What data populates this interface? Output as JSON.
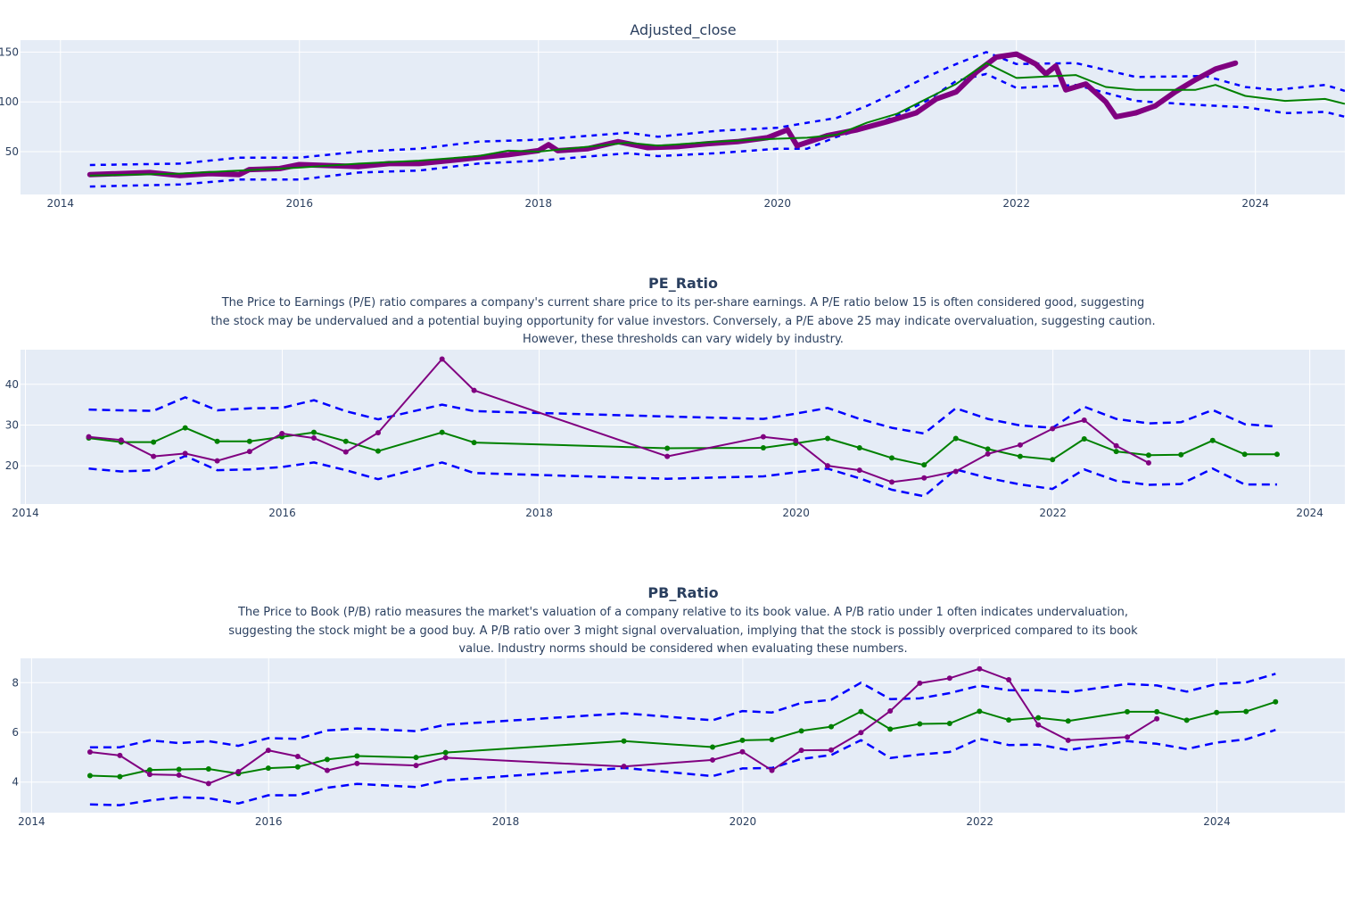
{
  "colors": {
    "background": "#E5ECF6",
    "grid": "#ffffff",
    "price": "#800080",
    "mean": "#008000",
    "band": "#0000ff",
    "text": "#2a3f5f"
  },
  "chart_data": [
    {
      "type": "line",
      "title": "Adjusted_close",
      "xlim": [
        "2013-09",
        "2024-10"
      ],
      "ylim": [
        7,
        162
      ],
      "xticks": [
        "2014",
        "2016",
        "2018",
        "2020",
        "2022",
        "2024"
      ],
      "yticks": [
        50,
        100,
        150
      ],
      "grid": true,
      "series": [
        {
          "role": "upper-band",
          "style": "dash",
          "x": [
            "2014-04",
            "2015-01",
            "2015-07",
            "2016-01",
            "2016-07",
            "2017-01",
            "2017-07",
            "2018-01",
            "2018-10",
            "2019-01",
            "2019-07",
            "2020-01",
            "2020-07",
            "2020-10",
            "2021-01",
            "2021-04",
            "2021-07",
            "2021-10",
            "2022-01",
            "2022-07",
            "2023-01",
            "2023-08",
            "2023-12",
            "2024-03",
            "2024-08",
            "2024-10"
          ],
          "y": [
            36.6,
            38,
            44,
            44,
            50,
            53,
            60,
            62,
            69,
            65,
            71,
            74,
            84,
            96,
            110,
            125,
            138,
            150,
            138,
            139,
            125,
            126,
            115,
            112,
            117,
            111
          ]
        },
        {
          "role": "lower-band",
          "style": "dash",
          "x": [
            "2014-04",
            "2015-01",
            "2015-07",
            "2016-01",
            "2016-07",
            "2017-01",
            "2017-07",
            "2018-01",
            "2018-10",
            "2019-01",
            "2019-07",
            "2020-01",
            "2020-04",
            "2020-07",
            "2020-10",
            "2021-01",
            "2021-04",
            "2021-07",
            "2021-10",
            "2022-01",
            "2022-07",
            "2023-01",
            "2023-07",
            "2023-12",
            "2024-04",
            "2024-08",
            "2024-10"
          ],
          "y": [
            15,
            17,
            22,
            22,
            29,
            31,
            38,
            41,
            48.5,
            45.5,
            48.5,
            53,
            53,
            65,
            74,
            86,
            101,
            121,
            128,
            114,
            117,
            101,
            97,
            94.6,
            88.7,
            90,
            85
          ]
        },
        {
          "role": "price",
          "style": "thick",
          "x": [
            "2014-04",
            "2014-07",
            "2014-10",
            "2015-01",
            "2015-04",
            "2015-07",
            "2015-08",
            "2015-11",
            "2016-01",
            "2016-04",
            "2016-07",
            "2016-10",
            "2017-01",
            "2017-04",
            "2017-07",
            "2017-10",
            "2018-01",
            "2018-02",
            "2018-03",
            "2018-06",
            "2018-09",
            "2018-12",
            "2019-03",
            "2019-06",
            "2019-09",
            "2019-12",
            "2020-02",
            "2020-03",
            "2020-06",
            "2020-09",
            "2020-12",
            "2021-03",
            "2021-05",
            "2021-07",
            "2021-09",
            "2021-11",
            "2022-01",
            "2022-03",
            "2022-04",
            "2022-05",
            "2022-06",
            "2022-08",
            "2022-10",
            "2022-11",
            "2023-01",
            "2023-03",
            "2023-05",
            "2023-07",
            "2023-09",
            "2023-11"
          ],
          "y": [
            27,
            28,
            29,
            26,
            28,
            27,
            32,
            33,
            37,
            36,
            35,
            38,
            38,
            41,
            44,
            47,
            51,
            57,
            51,
            53,
            60,
            54,
            55,
            58,
            60,
            64,
            72,
            56,
            66,
            72,
            80,
            89,
            103,
            110,
            130,
            145,
            148,
            138,
            128,
            136,
            112,
            118,
            100,
            85,
            89,
            96,
            110,
            122,
            133,
            139
          ]
        },
        {
          "role": "mean",
          "style": "solid",
          "x": [
            "2014-04",
            "2015-01",
            "2015-07",
            "2016-01",
            "2016-07",
            "2017-01",
            "2017-07",
            "2017-10",
            "2018-01",
            "2018-04",
            "2018-10",
            "2019-01",
            "2019-07",
            "2020-01",
            "2020-04",
            "2020-07",
            "2020-10",
            "2021-01",
            "2021-04",
            "2021-07",
            "2021-10",
            "2022-01",
            "2022-07",
            "2022-10",
            "2023-01",
            "2023-07",
            "2023-09",
            "2023-12",
            "2024-04",
            "2024-08",
            "2024-10"
          ],
          "y": [
            26,
            28,
            31,
            34,
            38,
            41,
            45.5,
            51,
            50,
            53,
            59,
            56,
            60,
            63,
            64,
            67,
            79,
            88,
            103,
            118,
            139,
            124,
            127,
            115,
            112,
            112,
            117,
            106,
            101,
            103,
            98
          ]
        }
      ]
    },
    {
      "type": "line",
      "title": "PE_Ratio",
      "description": [
        "The Price to Earnings (P/E) ratio compares a company's current share price to its per-share earnings. A P/E ratio below 15 is often considered good, suggesting",
        "the stock may be undervalued and a potential buying opportunity for value investors. Conversely, a P/E above 25 may indicate overvaluation, suggesting caution.",
        "However, these thresholds can vary widely by industry."
      ],
      "xlim": [
        "2013-12-18",
        "2024-04-10"
      ],
      "ylim": [
        10.6,
        48.5
      ],
      "xticks": [
        "2014",
        "2016",
        "2018",
        "2020",
        "2022",
        "2024"
      ],
      "yticks": [
        20,
        30,
        40
      ],
      "grid": true,
      "x": [
        "2014-06-30",
        "2014-09-30",
        "2014-12-31",
        "2015-03-31",
        "2015-06-30",
        "2015-09-30",
        "2015-12-31",
        "2016-03-31",
        "2016-06-30",
        "2016-09-30",
        "2017-03-31",
        "2017-06-30",
        "2018-12-31",
        "2019-09-30",
        "2019-12-31",
        "2020-03-31",
        "2020-06-30",
        "2020-09-30",
        "2020-12-31",
        "2021-03-31",
        "2021-06-30",
        "2021-09-30",
        "2021-12-31",
        "2022-03-31",
        "2022-06-30",
        "2022-09-30",
        "2022-12-31",
        "2023-03-31",
        "2023-06-30",
        "2023-09-30"
      ],
      "series": [
        {
          "role": "upper-band",
          "style": "dash",
          "y": [
            33.8,
            33.6,
            33.5,
            36.8,
            33.6,
            34.1,
            34.2,
            36.1,
            33.4,
            31.4,
            35.0,
            33.4,
            32.1,
            31.5,
            32.8,
            34.2,
            31.5,
            29.3,
            27.9,
            34.1,
            31.5,
            29.9,
            29.3,
            34.5,
            31.5,
            30.4,
            30.7,
            33.7,
            30.2,
            29.6
          ]
        },
        {
          "role": "lower-band",
          "style": "dash",
          "y": [
            19.3,
            18.6,
            18.9,
            22.4,
            18.9,
            19.1,
            19.7,
            20.8,
            18.9,
            16.7,
            20.8,
            18.2,
            16.8,
            17.4,
            18.4,
            19.3,
            16.9,
            14.1,
            12.5,
            19.1,
            17.0,
            15.4,
            14.3,
            19.1,
            16.3,
            15.3,
            15.5,
            19.3,
            15.4,
            15.4
          ]
        },
        {
          "role": "mean",
          "style": "markers",
          "y": [
            26.8,
            25.8,
            25.8,
            29.3,
            26.0,
            26.0,
            27.1,
            28.2,
            26.0,
            23.6,
            28.2,
            25.7,
            24.3,
            24.4,
            25.5,
            26.7,
            24.4,
            21.9,
            20.2,
            26.7,
            24.1,
            22.3,
            21.5,
            26.6,
            23.5,
            22.6,
            22.7,
            26.2,
            22.8,
            22.8
          ]
        },
        {
          "role": "value",
          "style": "markers",
          "y": [
            27.1,
            26.3,
            22.3,
            23.0,
            21.2,
            23.5,
            27.9,
            26.8,
            23.4,
            28.1,
            46.2,
            38.5,
            22.3,
            27.1,
            26.2,
            20.0,
            18.9,
            16.0,
            17.0,
            18.6,
            22.9,
            25.1,
            29.1,
            31.2,
            24.9,
            20.7,
            null,
            null,
            null,
            null
          ]
        }
      ]
    },
    {
      "type": "line",
      "title": "PB_Ratio",
      "description": [
        "The Price to Book (P/B) ratio measures the market's valuation of a company relative to its book value. A P/B ratio under 1 often indicates undervaluation,",
        "suggesting the stock might be a good buy. A P/B ratio over 3 might signal overvaluation, implying that the stock is possibly overpriced compared to its book",
        "value. Industry norms should be considered when evaluating these numbers."
      ],
      "xlim": [
        "2013-11-28",
        "2025-01-30"
      ],
      "ylim": [
        2.77,
        8.98
      ],
      "xticks": [
        "2014",
        "2016",
        "2018",
        "2020",
        "2022",
        "2024"
      ],
      "yticks": [
        4,
        6,
        8
      ],
      "grid": true,
      "x": [
        "2014-06-30",
        "2014-09-30",
        "2014-12-31",
        "2015-03-31",
        "2015-06-30",
        "2015-09-30",
        "2015-12-31",
        "2016-03-31",
        "2016-06-30",
        "2016-09-30",
        "2017-03-31",
        "2017-06-30",
        "2018-12-31",
        "2019-09-30",
        "2019-12-31",
        "2020-03-31",
        "2020-06-30",
        "2020-09-30",
        "2020-12-31",
        "2021-03-31",
        "2021-06-30",
        "2021-09-30",
        "2021-12-31",
        "2022-03-31",
        "2022-06-30",
        "2022-09-30",
        "2023-03-31",
        "2023-06-30",
        "2023-09-30",
        "2023-12-31",
        "2024-03-31",
        "2024-06-30"
      ],
      "series": [
        {
          "role": "upper-band",
          "style": "dash",
          "y": [
            5.4,
            5.4,
            5.68,
            5.57,
            5.65,
            5.46,
            5.77,
            5.74,
            6.08,
            6.16,
            6.05,
            6.31,
            6.77,
            6.49,
            6.86,
            6.8,
            7.19,
            7.31,
            8.0,
            7.34,
            7.37,
            7.58,
            7.88,
            7.7,
            7.7,
            7.62,
            7.95,
            7.89,
            7.64,
            7.95,
            8.01,
            8.36
          ]
        },
        {
          "role": "lower-band",
          "style": "dash",
          "y": [
            3.1,
            3.07,
            3.26,
            3.39,
            3.35,
            3.14,
            3.47,
            3.47,
            3.77,
            3.93,
            3.8,
            4.07,
            4.57,
            4.24,
            4.55,
            4.57,
            4.93,
            5.09,
            5.69,
            4.97,
            5.11,
            5.21,
            5.75,
            5.49,
            5.51,
            5.29,
            5.65,
            5.54,
            5.33,
            5.59,
            5.72,
            6.1
          ]
        },
        {
          "role": "mean",
          "style": "markers",
          "y": [
            4.26,
            4.22,
            4.49,
            4.51,
            4.53,
            4.34,
            4.56,
            4.61,
            4.91,
            5.05,
            4.99,
            5.19,
            5.65,
            5.41,
            5.68,
            5.71,
            6.06,
            6.23,
            6.84,
            6.13,
            6.34,
            6.36,
            6.85,
            6.5,
            6.59,
            6.46,
            6.83,
            6.83,
            6.49,
            6.8,
            6.84,
            7.23
          ]
        },
        {
          "role": "value",
          "style": "markers",
          "y": [
            5.21,
            5.07,
            4.31,
            4.28,
            3.94,
            4.42,
            5.28,
            5.03,
            4.47,
            4.75,
            4.67,
            4.98,
            4.63,
            4.89,
            5.22,
            4.47,
            5.28,
            5.29,
            5.99,
            6.86,
            7.98,
            8.18,
            8.56,
            8.12,
            6.3,
            5.68,
            5.81,
            6.55,
            null,
            null,
            null,
            null
          ]
        }
      ]
    }
  ]
}
